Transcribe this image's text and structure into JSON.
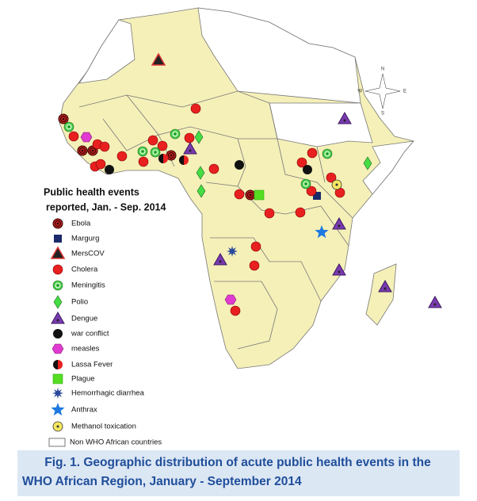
{
  "legend": {
    "title_lines": [
      "Public health events",
      "reported, Jan. - Sep. 2014"
    ],
    "items": [
      "Ebola",
      "Margurg",
      "MersCOV",
      "Cholera",
      "Meningitis",
      "Polio",
      "Dengue",
      "war conflict",
      "measles",
      "Lassa Fever",
      "Plague",
      "Hemorrhagic diarrhea",
      "Anthrax",
      "Methanol toxication",
      "Non WHO African countries"
    ]
  },
  "compass": [
    "N",
    "S",
    "E",
    "W"
  ],
  "caption": [
    "Fig. 1. Geographic distribution of acute public health events in the",
    "WHO African Region, January - September 2014"
  ]
}
